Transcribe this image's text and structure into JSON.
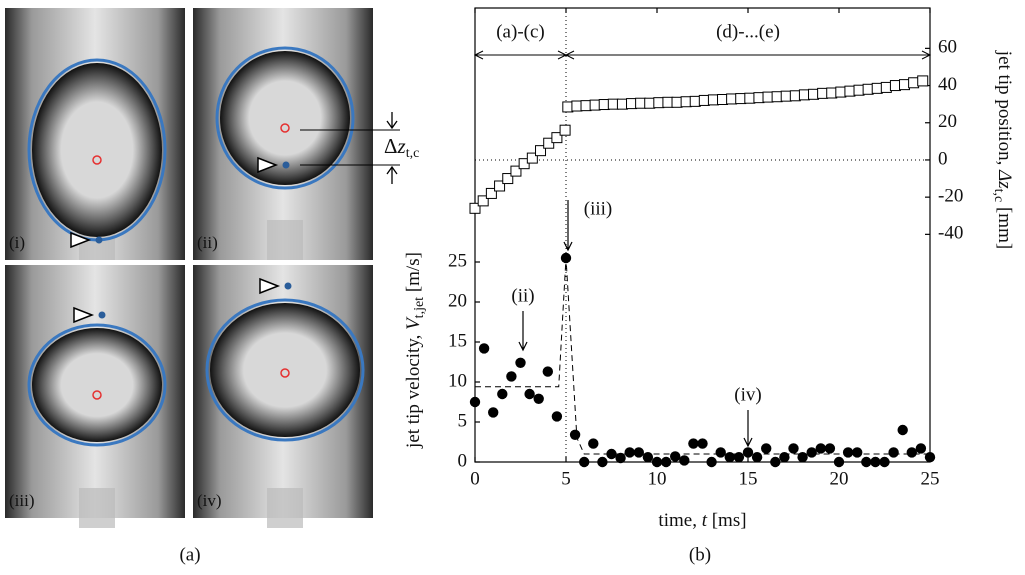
{
  "figure_a": {
    "panel_labels": [
      "(i)",
      "(ii)",
      "(iii)",
      "(iv)"
    ],
    "delta_label": [
      "Δ",
      "z",
      "t,c"
    ],
    "caption": "(a)"
  },
  "caption_b": "(b)",
  "chart_data": {
    "type": "scatter",
    "xlabel": [
      "time, ",
      "t",
      " [ms]"
    ],
    "ylabel": [
      "jet tip velocity, ",
      "V",
      "t,jet",
      " [m/s]"
    ],
    "y2label": [
      "jet tip position, ",
      "Δz",
      "t,c",
      " [mm]"
    ],
    "xlim": [
      0,
      25
    ],
    "xticks": [
      0,
      5,
      10,
      15,
      20,
      25
    ],
    "ylim": [
      0,
      56.75
    ],
    "yticks": [
      0,
      5,
      10,
      15,
      20,
      25
    ],
    "y2lim": [
      -162.4,
      81.7
    ],
    "y2ticks": [
      -40,
      -20,
      0,
      20,
      40,
      60
    ],
    "ranges": [
      "(a)-(c)",
      "(d)-...(e)"
    ],
    "annotations": [
      "(ii)",
      "(iii)",
      "(iv)"
    ],
    "ref_x": 5,
    "ref_y2": 0,
    "series": [
      {
        "marker": "filled-circle",
        "color": "#000000",
        "x": [
          0,
          0.5,
          1,
          1.5,
          2,
          2.5,
          3,
          3.5,
          4,
          4.5,
          5,
          5.5,
          6,
          6.5,
          7,
          7.5,
          8,
          8.5,
          9,
          9.5,
          10,
          10.5,
          11,
          11.5,
          12,
          12.5,
          13,
          13.5,
          14,
          14.5,
          15,
          15.5,
          16,
          16.5,
          17,
          17.5,
          18,
          18.5,
          19,
          19.5,
          20,
          20.5,
          21,
          21.5,
          22,
          22.5,
          23,
          23.5,
          24,
          24.5,
          25
        ],
        "values": [
          7.5,
          14.2,
          6.2,
          8.5,
          10.7,
          12.4,
          8.5,
          7.9,
          11.3,
          5.7,
          25.5,
          3.4,
          0,
          2.3,
          0,
          1,
          0.5,
          1.2,
          1.2,
          0.6,
          0,
          0,
          0.7,
          0.2,
          2.3,
          2.3,
          0,
          1.2,
          0.6,
          0.6,
          1.2,
          0.6,
          1.7,
          0,
          0.6,
          1.7,
          0.6,
          1.2,
          1.7,
          1.7,
          0,
          1.2,
          1.2,
          0,
          0,
          0,
          1.2,
          4,
          1.2,
          1.7,
          0.6
        ]
      },
      {
        "marker": "dashed-line",
        "color": "#000000",
        "x": [
          0,
          4.6,
          5,
          5.6,
          6,
          25
        ],
        "values": [
          9.4,
          9.4,
          25.5,
          3,
          1,
          1
        ]
      },
      {
        "marker": "open-square",
        "color": "#000000",
        "axis": "y2",
        "x": [
          0,
          0.45,
          0.9,
          1.35,
          1.8,
          2.25,
          2.7,
          3.15,
          3.6,
          4.05,
          4.5,
          4.95,
          5.1,
          5.6,
          6.1,
          6.6,
          7.1,
          7.6,
          8.1,
          8.6,
          9.1,
          9.6,
          10.1,
          10.6,
          11.1,
          11.6,
          12.1,
          12.6,
          13.1,
          13.6,
          14.1,
          14.6,
          15.1,
          15.6,
          16.1,
          16.6,
          17.1,
          17.6,
          18.1,
          18.6,
          19.1,
          19.6,
          20.1,
          20.6,
          21.1,
          21.6,
          22.1,
          22.6,
          23.1,
          23.6,
          24.1,
          24.6
        ],
        "values": [
          -26,
          -22,
          -18,
          -14,
          -10,
          -6,
          -2,
          1,
          5,
          9,
          12,
          16,
          28.5,
          29,
          29.2,
          29.5,
          29.8,
          30,
          30,
          30.3,
          30.5,
          30.5,
          30.8,
          31,
          31,
          31.3,
          31.5,
          32,
          32.3,
          32.5,
          32.8,
          33,
          33.2,
          33.5,
          33.8,
          34,
          34.3,
          34.5,
          35,
          35.3,
          35.8,
          36,
          36.5,
          37,
          37.5,
          38,
          38.5,
          39,
          40,
          40.5,
          41.5,
          42.5
        ]
      }
    ]
  }
}
